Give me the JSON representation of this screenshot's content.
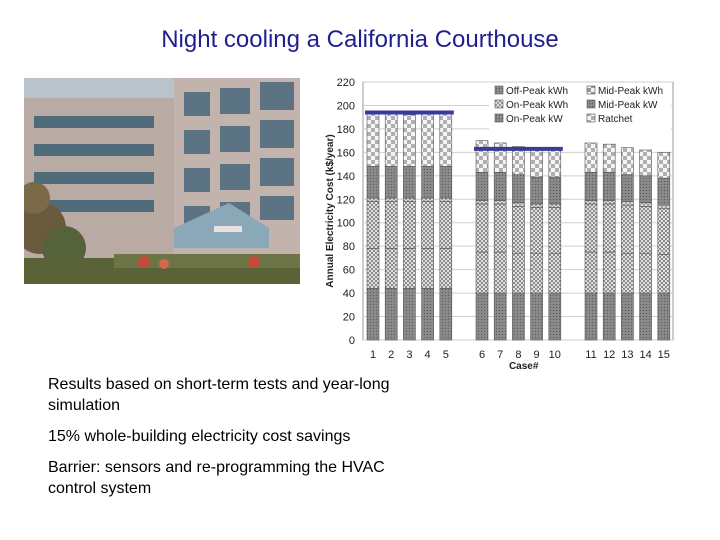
{
  "slide": {
    "title": "Night cooling a California Courthouse",
    "bullets": [
      "Results based on short-term tests and year-long simulation",
      "15% whole-building electricity cost savings",
      "Barrier: sensors and re-programming the HVAC control system"
    ]
  },
  "colors": {
    "title": "#1f1f8f",
    "target_line": "#3a3a9a",
    "bar_dark": "#8a8a8a",
    "bar_check": "#d0d0d0"
  },
  "chart_data": {
    "type": "bar",
    "stacked": true,
    "title": "",
    "xlabel": "Case#",
    "ylabel": "Annual Electricity Cost (k$/year)",
    "ylim": [
      0,
      220
    ],
    "yticks": [
      0,
      20,
      40,
      60,
      80,
      100,
      120,
      140,
      160,
      180,
      200,
      220
    ],
    "grid": true,
    "legend_position": "top-right",
    "categories": [
      "1",
      "2",
      "3",
      "4",
      "5",
      "6",
      "7",
      "8",
      "9",
      "10",
      "11",
      "12",
      "13",
      "14",
      "15"
    ],
    "groups": [
      [
        1,
        2,
        3,
        4,
        5
      ],
      [
        6,
        7,
        8,
        9,
        10
      ],
      [
        11,
        12,
        13,
        14,
        15
      ]
    ],
    "series": [
      {
        "name": "Off-Peak kWh",
        "values": [
          44,
          44,
          44,
          44,
          44,
          40,
          40,
          40,
          40,
          40,
          40,
          40,
          40,
          40,
          40
        ]
      },
      {
        "name": "Mid-Peak kWh",
        "values": [
          34,
          34,
          34,
          34,
          34,
          35,
          35,
          34,
          34,
          34,
          35,
          35,
          34,
          34,
          33
        ]
      },
      {
        "name": "On-Peak kWh",
        "values": [
          40,
          40,
          40,
          40,
          40,
          41,
          41,
          40,
          39,
          39,
          41,
          41,
          41,
          40,
          39
        ]
      },
      {
        "name": "Mid-Peak kW",
        "values": [
          3,
          3,
          3,
          3,
          3,
          3,
          3,
          3,
          3,
          3,
          3,
          3,
          3,
          3,
          3
        ]
      },
      {
        "name": "On-Peak kW",
        "values": [
          27,
          27,
          27,
          27,
          27,
          24,
          24,
          24,
          23,
          23,
          24,
          24,
          23,
          23,
          23
        ]
      },
      {
        "name": "Ratchet",
        "values": [
          45,
          45,
          44,
          45,
          45,
          27,
          25,
          24,
          24,
          23,
          25,
          24,
          23,
          22,
          22
        ]
      }
    ],
    "reference_lines": [
      {
        "from_case": 1,
        "to_case": 5,
        "value": 194
      },
      {
        "from_case": 6,
        "to_case": 10,
        "value": 163
      }
    ]
  }
}
